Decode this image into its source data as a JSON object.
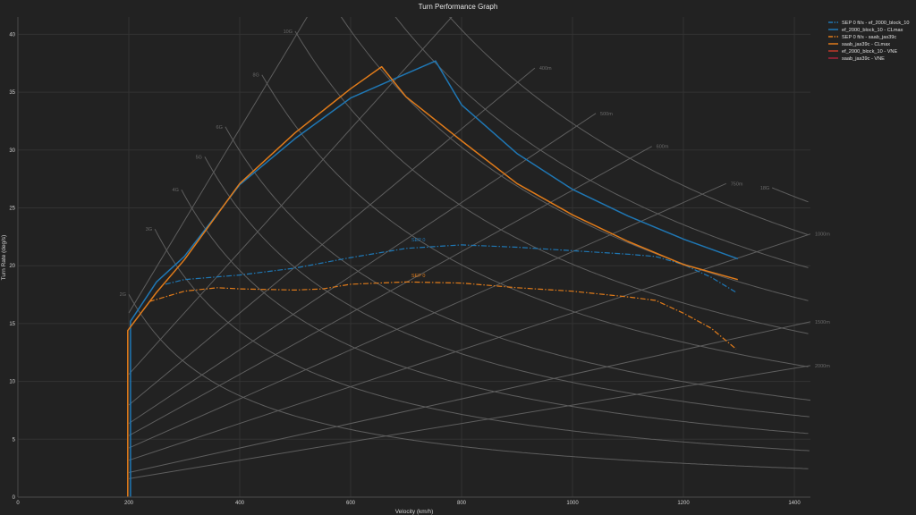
{
  "chart_data": {
    "type": "line",
    "title": "Turn Performance Graph",
    "xlabel": "Velocity (km/h)",
    "ylabel": "Turn Rate (deg/s)",
    "xlim": [
      0,
      1429
    ],
    "ylim": [
      0,
      41.5
    ],
    "xticks": [
      0,
      200,
      400,
      600,
      800,
      1000,
      1200,
      1400
    ],
    "yticks": [
      0,
      5,
      10,
      15,
      20,
      25,
      30,
      35,
      40
    ],
    "grid": true,
    "legend_position": "right",
    "series": [
      {
        "name": "SEP 0 ft/s - ef_2000_block_10",
        "color": "#1f77b4",
        "dash": "dashdot",
        "x": [
          266,
          300,
          400,
          500,
          600,
          700,
          800,
          900,
          1000,
          1100,
          1150,
          1200,
          1250,
          1295
        ],
        "y": [
          18.4,
          18.8,
          19.2,
          19.8,
          20.7,
          21.5,
          21.8,
          21.6,
          21.3,
          21.0,
          20.8,
          20.1,
          19.0,
          17.7
        ],
        "label": "SEP 0",
        "label_at": [
          722,
          22.1
        ]
      },
      {
        "name": "ef_2000_block_10 - CLmax",
        "color": "#1f77b4",
        "dash": "solid",
        "x": [
          203,
          203,
          250,
          300,
          400,
          500,
          600,
          700,
          753,
          800,
          900,
          1000,
          1100,
          1200,
          1298
        ],
        "y": [
          0,
          15.2,
          18.6,
          20.8,
          27.0,
          31.0,
          34.5,
          36.6,
          37.7,
          33.9,
          29.7,
          26.6,
          24.3,
          22.3,
          20.6
        ]
      },
      {
        "name": "SEP 0 ft/s - saab_jas39c",
        "color": "#e07b1a",
        "dash": "dashdot",
        "x": [
          237,
          300,
          360,
          400,
          500,
          550,
          600,
          700,
          800,
          900,
          1000,
          1100,
          1150,
          1200,
          1250,
          1295
        ],
        "y": [
          16.9,
          17.8,
          18.1,
          18.0,
          17.9,
          18.0,
          18.4,
          18.6,
          18.5,
          18.1,
          17.8,
          17.3,
          17.0,
          15.9,
          14.6,
          12.8
        ],
        "label": "SEP 0",
        "label_at": [
          722,
          19.0
        ]
      },
      {
        "name": "saab_jas39c - CLmax",
        "color": "#e07b1a",
        "dash": "solid",
        "x": [
          198,
          198,
          250,
          300,
          400,
          500,
          600,
          656,
          700,
          800,
          900,
          1000,
          1100,
          1200,
          1298
        ],
        "y": [
          0,
          14.4,
          17.7,
          20.5,
          27.1,
          31.5,
          35.3,
          37.2,
          34.6,
          30.8,
          27.1,
          24.4,
          22.1,
          20.1,
          18.8
        ]
      },
      {
        "name": "ef_2000_block_10 - VNE",
        "color": "#c0392b",
        "dash": "solid",
        "x": [],
        "y": []
      },
      {
        "name": "saab_jas39c - VNE",
        "color": "#a8233a",
        "dash": "solid",
        "x": [],
        "y": []
      }
    ],
    "g_curves": [
      {
        "n": 2,
        "label": "2G",
        "v_start": 200
      },
      {
        "n": 3,
        "label": "3G",
        "v_start": 247
      },
      {
        "n": 4,
        "label": "4G",
        "v_start": 295
      },
      {
        "n": 5,
        "label": "5G",
        "v_start": 337
      },
      {
        "n": 6,
        "label": "6G",
        "v_start": 374
      },
      {
        "n": 8,
        "label": "8G",
        "v_start": 440
      },
      {
        "n": 10,
        "label": "10G",
        "v_start": 500
      },
      {
        "n": 12,
        "label": "",
        "v_start": 540
      },
      {
        "n": 14,
        "label": "",
        "v_start": 600
      },
      {
        "n": 16,
        "label": "",
        "v_start": 660
      },
      {
        "n": 18,
        "label": "18G",
        "v_start": 1360
      }
    ],
    "radius_lines": [
      {
        "r": 200,
        "label": "",
        "v_end": 1429
      },
      {
        "r": 300,
        "label": "",
        "v_end": 1429
      },
      {
        "r": 400,
        "label": "400m",
        "v_end": 932
      },
      {
        "r": 500,
        "label": "500m",
        "v_end": 1042
      },
      {
        "r": 600,
        "label": "600m",
        "v_end": 1143
      },
      {
        "r": 750,
        "label": "750m",
        "v_end": 1277
      },
      {
        "r": 1000,
        "label": "1000m",
        "v_end": 1429
      },
      {
        "r": 1500,
        "label": "1500m",
        "v_end": 1429
      },
      {
        "r": 2000,
        "label": "2000m",
        "v_end": 1429
      }
    ]
  }
}
